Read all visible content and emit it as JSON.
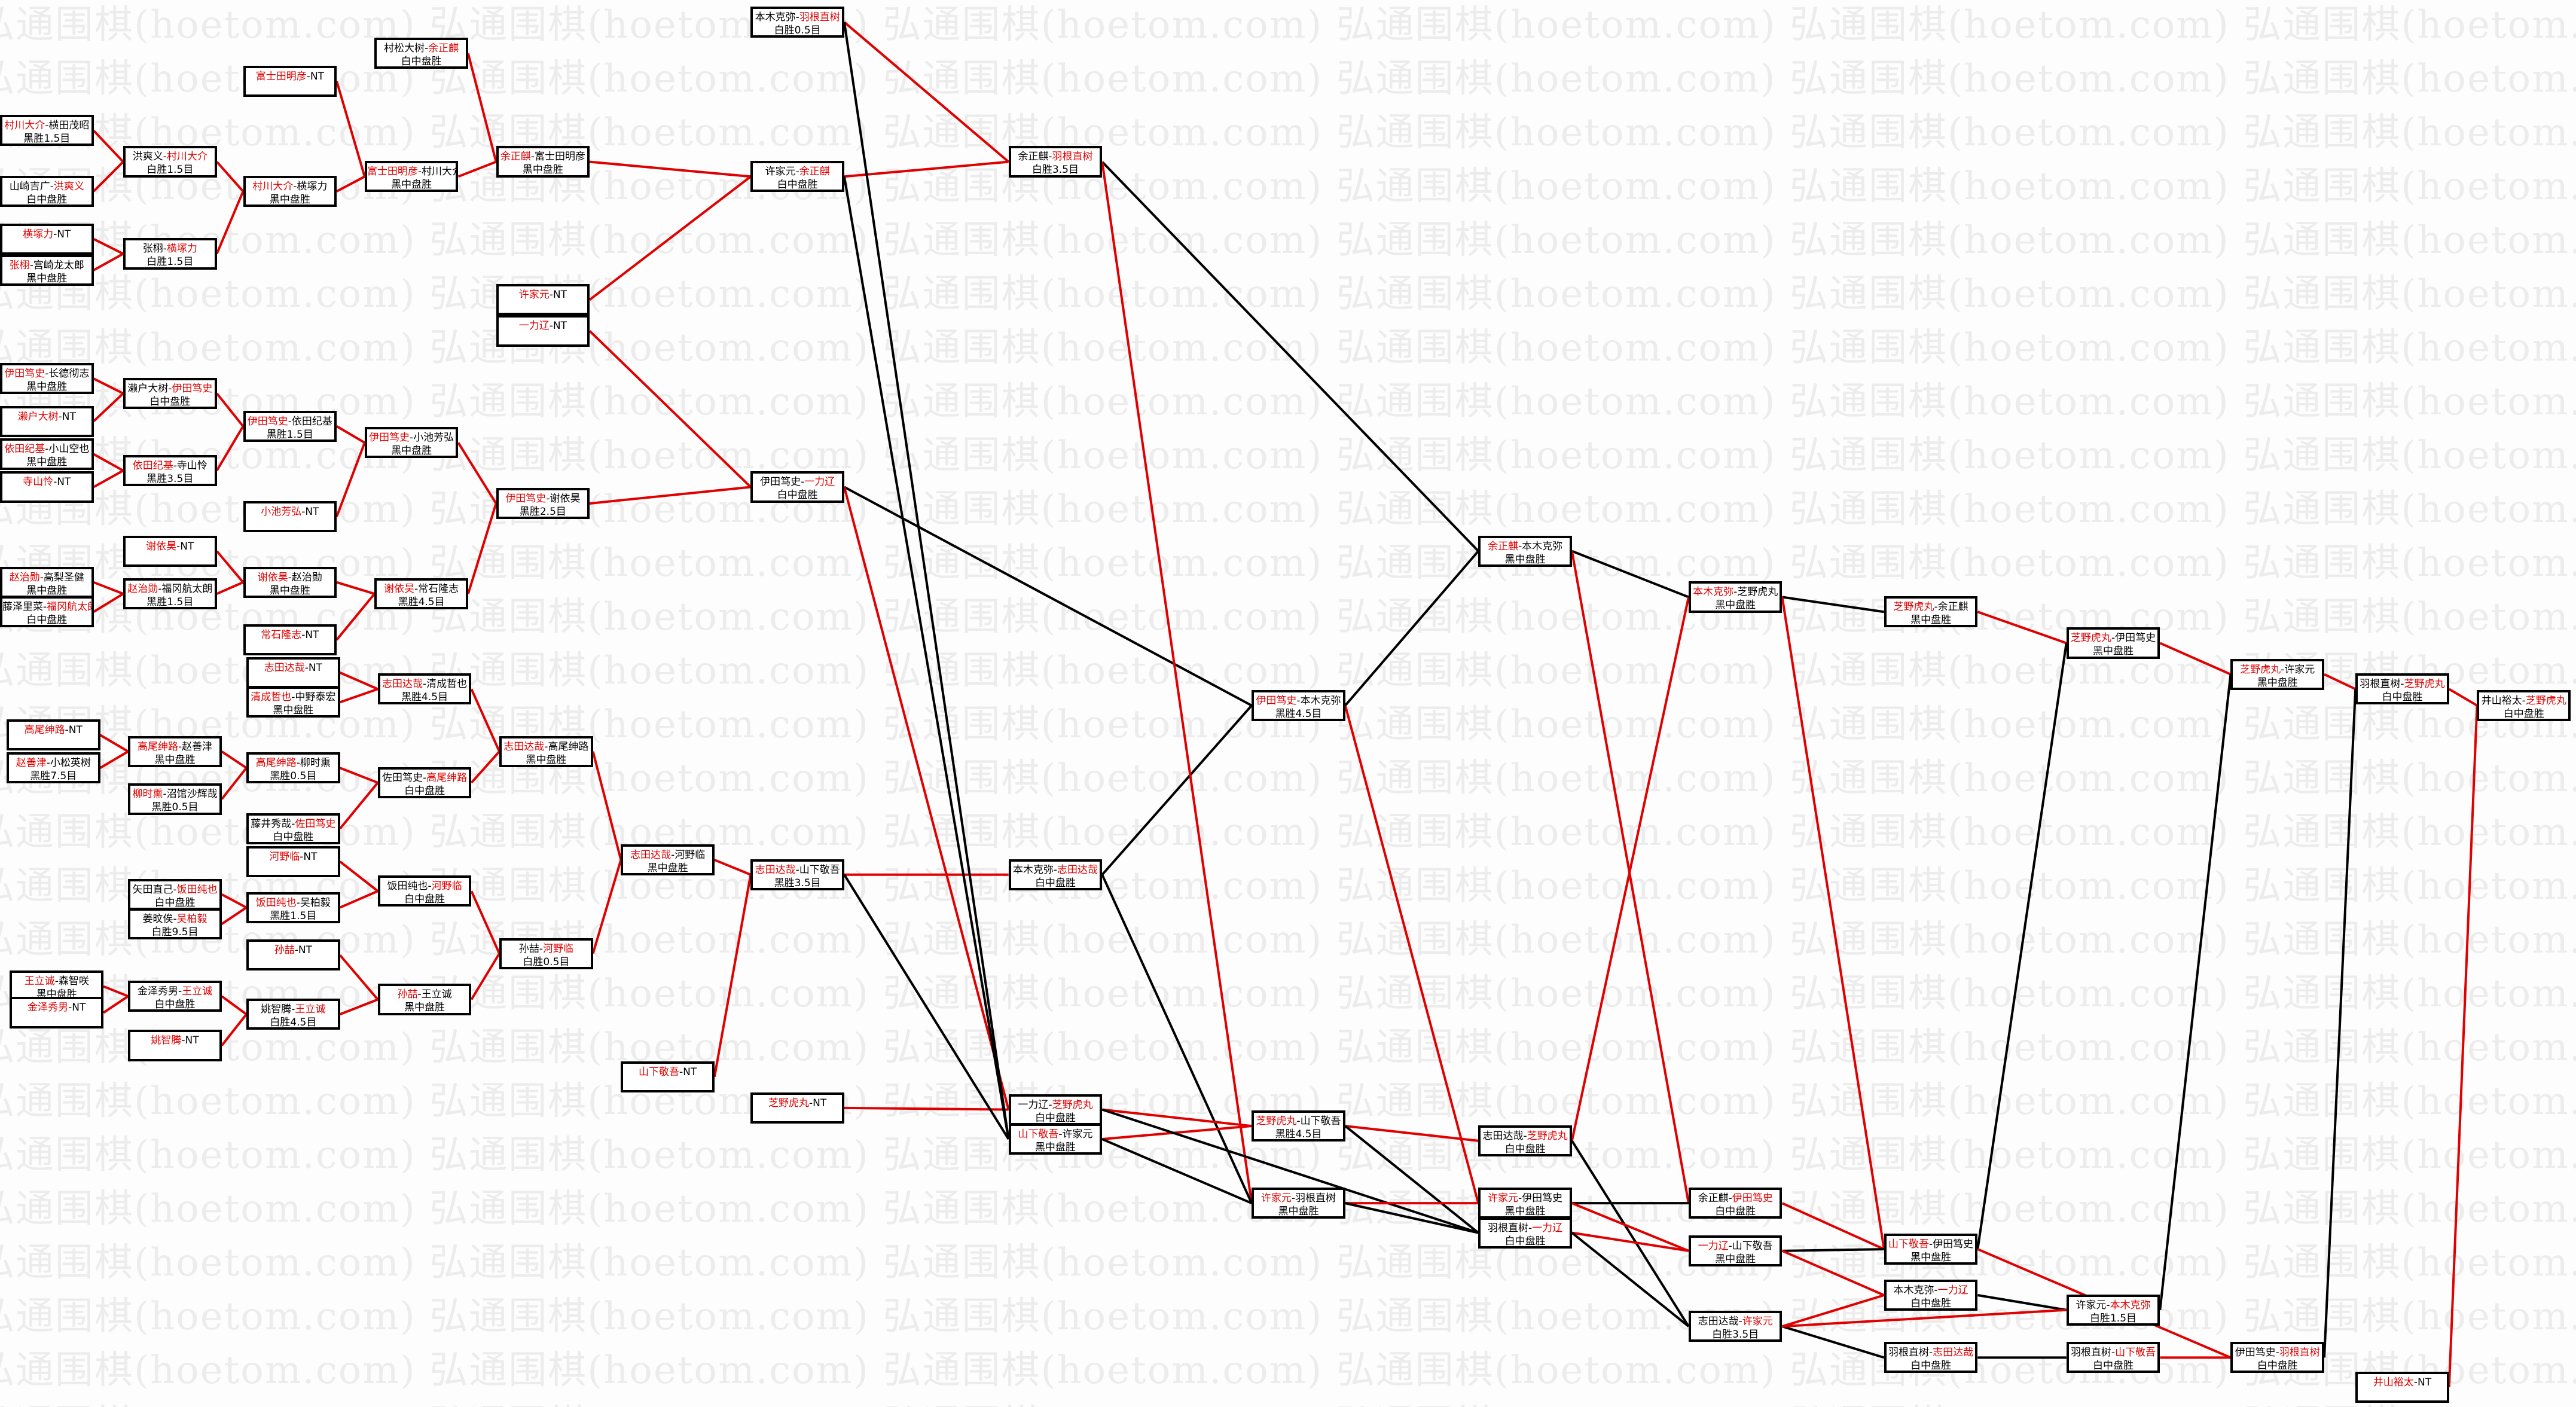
{
  "watermark": "弘通围棋(hoetom.com) 弘通围棋(hoetom.com) 弘通围棋(hoetom.com) 弘通围棋(hoetom.com) 弘通围棋(hoetom.com) 弘通围棋(hoetom.com) 弘通围棋(hoetom.com)",
  "colors": {
    "winner": "#e00000",
    "winner_path": "#e00000",
    "loser_path": "#000000",
    "border": "#000000"
  },
  "matches": [
    {
      "a": "村川大介",
      "b": "横田茂昭",
      "w": 0,
      "r": "黑胜1.5目"
    },
    {
      "a": "山崎吉广",
      "b": "洪爽义",
      "w": 1,
      "r": "白中盘胜"
    },
    {
      "a": "横塚力",
      "nt": "-NT"
    },
    {
      "a": "张栩",
      "b": "宫崎龙太郎",
      "w": 0,
      "r": "黑中盘胜"
    },
    {
      "a": "伊田笃史",
      "b": "长德彻志",
      "w": 0,
      "r": "黑中盘胜"
    },
    {
      "a": "濑户大树",
      "nt": "-NT"
    },
    {
      "a": "依田纪基",
      "b": "小山空也",
      "w": 0,
      "r": "黑中盘胜"
    },
    {
      "a": "寺山怜",
      "nt": "-NT"
    },
    {
      "a": "赵治勋",
      "b": "高梨圣健",
      "w": 0,
      "r": "黑中盘胜"
    },
    {
      "a": "藤泽里菜",
      "b": "福冈航太朗",
      "w": 1,
      "r": "白中盘胜"
    },
    {
      "a": "高尾绅路",
      "nt": "-NT"
    },
    {
      "a": "赵善津",
      "b": "小松英树",
      "w": 0,
      "r": "黑胜7.5目"
    },
    {
      "a": "王立诚",
      "b": "森智咲",
      "w": 0,
      "r": "黑中盘胜"
    },
    {
      "a": "金泽秀男",
      "nt": "-NT"
    },
    {
      "a": "洪爽义",
      "b": "村川大介",
      "w": 1,
      "r": "白胜1.5目"
    },
    {
      "a": "张栩",
      "b": "横塚力",
      "w": 1,
      "r": "白胜1.5目"
    },
    {
      "a": "濑户大树",
      "b": "伊田笃史",
      "w": 1,
      "r": "白中盘胜"
    },
    {
      "a": "依田纪基",
      "b": "寺山怜",
      "w": 0,
      "r": "黑胜3.5目"
    },
    {
      "a": "谢依昊",
      "nt": "-NT"
    },
    {
      "a": "赵治勋",
      "b": "福冈航太朗",
      "w": 0,
      "r": "黑胜1.5目"
    },
    {
      "a": "高尾绅路",
      "b": "赵善津",
      "w": 0,
      "r": "黑中盘胜"
    },
    {
      "a": "柳时熏",
      "b": "沼馆沙辉哉",
      "w": 0,
      "r": "黑胜0.5目"
    },
    {
      "a": "矢田直己",
      "b": "饭田纯也",
      "w": 1,
      "r": "白中盘胜"
    },
    {
      "a": "姜旼俟",
      "b": "吴柏毅",
      "w": 1,
      "r": "白胜9.5目"
    },
    {
      "a": "金泽秀男",
      "b": "王立诚",
      "w": 1,
      "r": "白中盘胜"
    },
    {
      "a": "姚智腾",
      "nt": "-NT"
    },
    {
      "a": "富士田明彦",
      "nt": "-NT"
    },
    {
      "a": "村川大介",
      "b": "横塚力",
      "w": 0,
      "r": "黑中盘胜"
    },
    {
      "a": "伊田笃史",
      "b": "依田纪基",
      "w": 0,
      "r": "黑胜1.5目"
    },
    {
      "a": "小池芳弘",
      "nt": "-NT"
    },
    {
      "a": "谢依昊",
      "b": "赵治勋",
      "w": 0,
      "r": "黑中盘胜"
    },
    {
      "a": "常石隆志",
      "nt": "-NT"
    },
    {
      "a": "志田达哉",
      "nt": "-NT"
    },
    {
      "a": "清成哲也",
      "b": "中野泰宏",
      "w": 0,
      "r": "黑中盘胜"
    },
    {
      "a": "高尾绅路",
      "b": "柳时熏",
      "w": 0,
      "r": "黑胜0.5目"
    },
    {
      "a": "藤井秀哉",
      "b": "佐田笃史",
      "w": 1,
      "r": "白中盘胜"
    },
    {
      "a": "河野临",
      "nt": "-NT"
    },
    {
      "a": "饭田纯也",
      "b": "吴柏毅",
      "w": 0,
      "r": "黑胜1.5目"
    },
    {
      "a": "孙喆",
      "nt": "-NT"
    },
    {
      "a": "姚智腾",
      "b": "王立诚",
      "w": 1,
      "r": "白胜4.5目"
    },
    {
      "a": "村松大树",
      "b": "余正麒",
      "w": 1,
      "r": "白中盘胜"
    },
    {
      "a": "富士田明彦",
      "b": "村川大介",
      "w": 0,
      "r": "黑中盘胜"
    },
    {
      "a": "伊田笃史",
      "b": "小池芳弘",
      "w": 0,
      "r": "黑中盘胜"
    },
    {
      "a": "谢依昊",
      "b": "常石隆志",
      "w": 0,
      "r": "黑胜4.5目"
    },
    {
      "a": "志田达哉",
      "b": "清成哲也",
      "w": 0,
      "r": "黑胜4.5目"
    },
    {
      "a": "佐田笃史",
      "b": "高尾绅路",
      "w": 1,
      "r": "白中盘胜"
    },
    {
      "a": "饭田纯也",
      "b": "河野临",
      "w": 1,
      "r": "白中盘胜"
    },
    {
      "a": "孙喆",
      "b": "王立诚",
      "w": 0,
      "r": "黑中盘胜"
    },
    {
      "a": "余正麒",
      "b": "富士田明彦",
      "w": 0,
      "r": "黑中盘胜"
    },
    {
      "a": "许家元",
      "nt": "-NT"
    },
    {
      "a": "一力辽",
      "nt": "-NT"
    },
    {
      "a": "伊田笃史",
      "b": "谢依昊",
      "w": 0,
      "r": "黑胜2.5目"
    },
    {
      "a": "志田达哉",
      "b": "高尾绅路",
      "w": 0,
      "r": "黑中盘胜"
    },
    {
      "a": "孙喆",
      "b": "河野临",
      "w": 1,
      "r": "白胜0.5目"
    },
    {
      "a": "志田达哉",
      "b": "河野临",
      "w": 0,
      "r": "黑中盘胜"
    },
    {
      "a": "山下敬吾",
      "nt": "-NT"
    },
    {
      "a": "本木克弥",
      "b": "羽根直树",
      "w": 1,
      "r": "白胜0.5目"
    },
    {
      "a": "许家元",
      "b": "余正麒",
      "w": 1,
      "r": "白中盘胜"
    },
    {
      "a": "伊田笃史",
      "b": "一力辽",
      "w": 1,
      "r": "白中盘胜"
    },
    {
      "a": "志田达哉",
      "b": "山下敬吾",
      "w": 0,
      "r": "黑胜3.5目"
    },
    {
      "a": "芝野虎丸",
      "nt": "-NT"
    },
    {
      "a": "余正麒",
      "b": "羽根直树",
      "w": 1,
      "r": "白胜3.5目"
    },
    {
      "a": "本木克弥",
      "b": "志田达哉",
      "w": 1,
      "r": "白中盘胜"
    },
    {
      "a": "一力辽",
      "b": "芝野虎丸",
      "w": 1,
      "r": "白中盘胜"
    },
    {
      "a": "山下敬吾",
      "b": "许家元",
      "w": 0,
      "r": "黑中盘胜"
    },
    {
      "a": "伊田笃史",
      "b": "本木克弥",
      "w": 0,
      "r": "黑胜4.5目"
    },
    {
      "a": "芝野虎丸",
      "b": "山下敬吾",
      "w": 0,
      "r": "黑胜4.5目"
    },
    {
      "a": "许家元",
      "b": "羽根直树",
      "w": 0,
      "r": "黑中盘胜"
    },
    {
      "a": "余正麒",
      "b": "本木克弥",
      "w": 0,
      "r": "黑中盘胜"
    },
    {
      "a": "志田达哉",
      "b": "芝野虎丸",
      "w": 1,
      "r": "白中盘胜"
    },
    {
      "a": "许家元",
      "b": "伊田笃史",
      "w": 0,
      "r": "黑中盘胜"
    },
    {
      "a": "羽根直树",
      "b": "一力辽",
      "w": 1,
      "r": "白中盘胜"
    },
    {
      "a": "本木克弥",
      "b": "芝野虎丸",
      "w": 0,
      "r": "黑中盘胜"
    },
    {
      "a": "余正麒",
      "b": "伊田笃史",
      "w": 1,
      "r": "白中盘胜"
    },
    {
      "a": "一力辽",
      "b": "山下敬吾",
      "w": 0,
      "r": "黑中盘胜"
    },
    {
      "a": "志田达哉",
      "b": "许家元",
      "w": 1,
      "r": "白胜3.5目"
    },
    {
      "a": "芝野虎丸",
      "b": "余正麒",
      "w": 0,
      "r": "黑中盘胜"
    },
    {
      "a": "山下敬吾",
      "b": "伊田笃史",
      "w": 0,
      "r": "黑中盘胜"
    },
    {
      "a": "本木克弥",
      "b": "一力辽",
      "w": 1,
      "r": "白中盘胜"
    },
    {
      "a": "羽根直树",
      "b": "志田达哉",
      "w": 1,
      "r": "白中盘胜"
    },
    {
      "a": "芝野虎丸",
      "b": "伊田笃史",
      "w": 0,
      "r": "黑中盘胜"
    },
    {
      "a": "许家元",
      "b": "本木克弥",
      "w": 1,
      "r": "白胜1.5目"
    },
    {
      "a": "羽根直树",
      "b": "山下敬吾",
      "w": 1,
      "r": "白中盘胜"
    },
    {
      "a": "芝野虎丸",
      "b": "许家元",
      "w": 0,
      "r": "黑中盘胜"
    },
    {
      "a": "伊田笃史",
      "b": "羽根直树",
      "w": 1,
      "r": "白中盘胜"
    },
    {
      "a": "羽根直树",
      "b": "芝野虎丸",
      "w": 1,
      "r": "白中盘胜"
    },
    {
      "a": "井山裕太",
      "nt": "-NT"
    },
    {
      "a": "井山裕太",
      "b": "芝野虎丸",
      "w": 1,
      "r": "白中盘胜"
    }
  ]
}
